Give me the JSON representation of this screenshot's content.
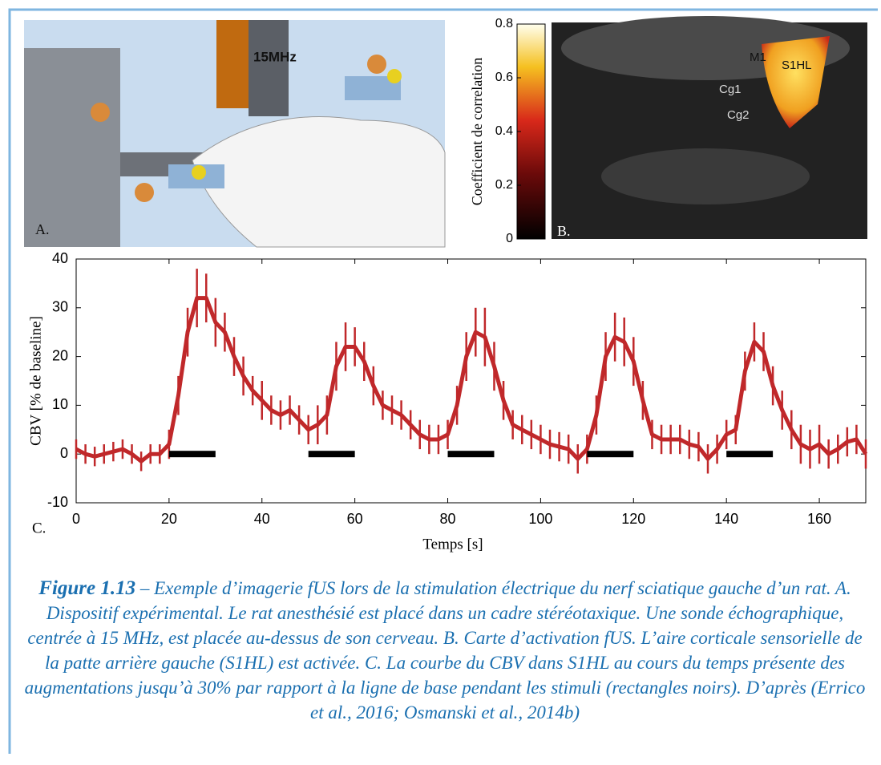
{
  "panels": {
    "a": {
      "probe_label": "15MHz",
      "letter": "A."
    },
    "b": {
      "letter": "B.",
      "regions": [
        "M1",
        "S1HL",
        "Cg1",
        "Cg2"
      ],
      "colorbar": {
        "label": "Coefficient de correlation",
        "lim": [
          0,
          0.8
        ],
        "ticks": [
          0,
          0.2,
          0.4,
          0.6,
          0.8
        ]
      }
    },
    "c": {
      "letter": "C."
    }
  },
  "chart_data": {
    "type": "line",
    "xlabel": "Temps [s]",
    "ylabel": "CBV [% de baseline]",
    "xlim": [
      0,
      170
    ],
    "ylim": [
      -10,
      40
    ],
    "xticks": [
      0,
      20,
      40,
      60,
      80,
      100,
      120,
      140,
      160
    ],
    "yticks": [
      -10,
      0,
      10,
      20,
      30,
      40
    ],
    "x": [
      0,
      2,
      4,
      6,
      8,
      10,
      12,
      14,
      16,
      18,
      20,
      22,
      24,
      26,
      28,
      30,
      32,
      34,
      36,
      38,
      40,
      42,
      44,
      46,
      48,
      50,
      52,
      54,
      56,
      58,
      60,
      62,
      64,
      66,
      68,
      70,
      72,
      74,
      76,
      78,
      80,
      82,
      84,
      86,
      88,
      90,
      92,
      94,
      96,
      98,
      100,
      102,
      104,
      106,
      108,
      110,
      112,
      114,
      116,
      118,
      120,
      122,
      124,
      126,
      128,
      130,
      132,
      134,
      136,
      138,
      140,
      142,
      144,
      146,
      148,
      150,
      152,
      154,
      156,
      158,
      160,
      162,
      164,
      166,
      168,
      170
    ],
    "series": [
      {
        "color": "#c0282a",
        "values": [
          1,
          0,
          -0.5,
          0,
          0.5,
          1,
          0,
          -1.5,
          0,
          0,
          2,
          12,
          25,
          32,
          32,
          27,
          25,
          20,
          16,
          13,
          11,
          9,
          8,
          9,
          7,
          5,
          6,
          8,
          18,
          22,
          22,
          19,
          14,
          10,
          9,
          8,
          6,
          4,
          3,
          3,
          4,
          10,
          20,
          25,
          24,
          18,
          11,
          6,
          5,
          4,
          3,
          2,
          1.5,
          1,
          -1,
          1,
          8,
          20,
          24,
          23,
          19,
          11,
          4,
          3,
          3,
          3,
          2,
          1.5,
          -1,
          1,
          4,
          5,
          17,
          23,
          21,
          14,
          9,
          5,
          2,
          1,
          2,
          0,
          1,
          2.5,
          3,
          0
        ],
        "errors": [
          2,
          2,
          2,
          2,
          2,
          2,
          2,
          2,
          2,
          2,
          3,
          4,
          5,
          6,
          5,
          5,
          4,
          4,
          4,
          3,
          4,
          3,
          3,
          3,
          3,
          3,
          4,
          4,
          5,
          5,
          4,
          4,
          4,
          3,
          3,
          3,
          3,
          3,
          3,
          3,
          3,
          4,
          5,
          5,
          6,
          5,
          4,
          3,
          3,
          3,
          3,
          3,
          3,
          3,
          3,
          3,
          4,
          5,
          5,
          5,
          5,
          4,
          3,
          3,
          3,
          3,
          3,
          3,
          3,
          3,
          3,
          3,
          4,
          4,
          4,
          4,
          4,
          4,
          4,
          4,
          4,
          3,
          3,
          3,
          3,
          3
        ]
      }
    ],
    "stimuli": [
      [
        20,
        30
      ],
      [
        50,
        60
      ],
      [
        80,
        90
      ],
      [
        110,
        120
      ],
      [
        140,
        150
      ]
    ],
    "stimulus_color": "#000000"
  },
  "caption": {
    "label": "Figure 1.13",
    "text": " – Exemple d’imagerie fUS lors de la stimulation électrique du nerf sciatique gauche d’un rat. A. Dispositif expérimental. Le rat anesthésié est placé dans un cadre stéréotaxique. Une sonde échographique, centrée à 15 MHz, est placée au-dessus de son cerveau. B. Carte d’activation fUS. L’aire corticale sensorielle de la patte arrière gauche (S1HL) est activée. C. La courbe du CBV dans S1HL au cours du temps présente des augmentations jusqu’à 30% par rapport à la ligne de base pendant les stimuli (rectangles noirs). D’après (Errico et al., 2016; Osmanski et al., 2014b)"
  }
}
